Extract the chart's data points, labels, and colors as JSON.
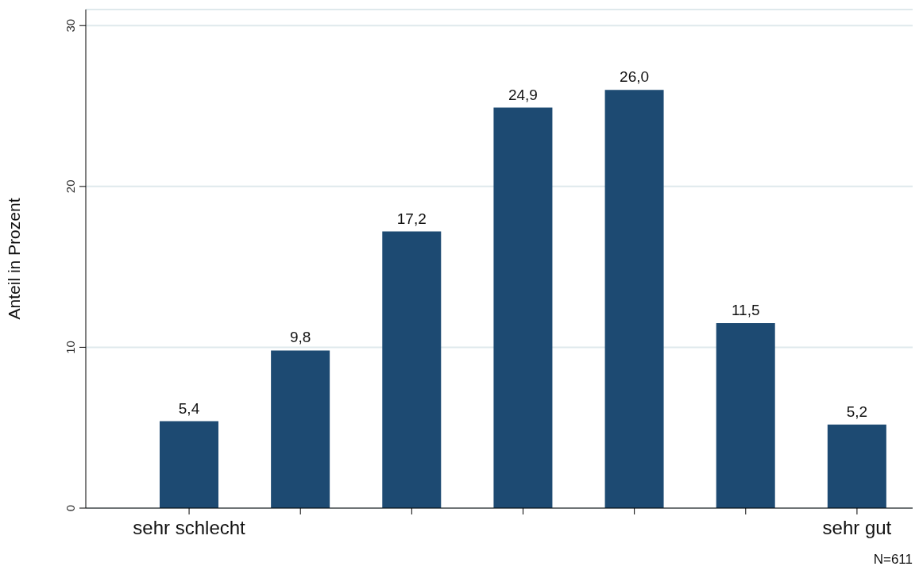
{
  "chart_data": {
    "type": "bar",
    "ylabel": "Anteil in Prozent",
    "categories": [
      "sehr schlecht",
      null,
      null,
      null,
      null,
      null,
      "sehr gut"
    ],
    "values": [
      5.4,
      9.8,
      17.2,
      24.9,
      26.0,
      11.5,
      5.2
    ],
    "value_labels": [
      "5,4",
      "9,8",
      "17,2",
      "24,9",
      "26,0",
      "11,5",
      "5,2"
    ],
    "color": "#1d4a72",
    "ylim": [
      0,
      31
    ],
    "yticks": [
      0,
      10,
      20,
      30
    ],
    "grid": "y",
    "annotations": [
      "N=611"
    ]
  }
}
